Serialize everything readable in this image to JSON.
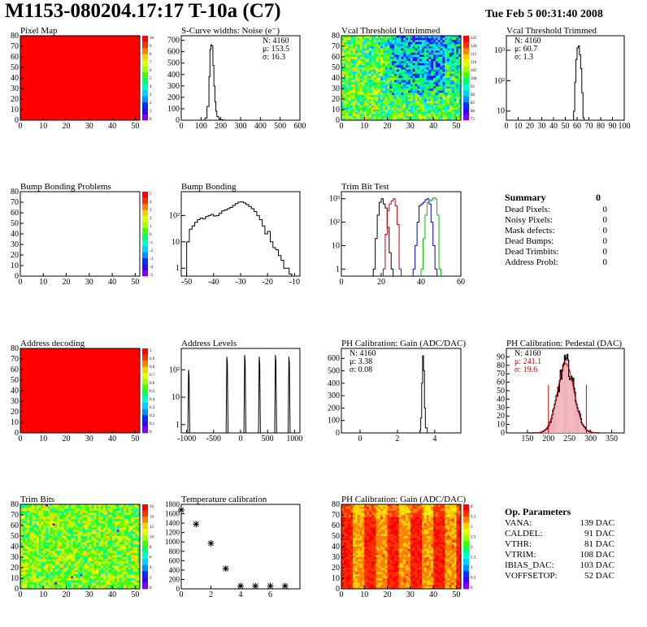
{
  "header": {
    "title": "M1153-080204.17:17 T-10a (C7)",
    "date": "Tue Feb  5 00:31:40 2008"
  },
  "summary": {
    "title": "Summary",
    "total": "0",
    "rows": [
      {
        "label": "Dead Pixels:",
        "value": "0"
      },
      {
        "label": "Noisy Pixels:",
        "value": "0"
      },
      {
        "label": "Mask defects:",
        "value": "0"
      },
      {
        "label": "Dead Bumps:",
        "value": "0"
      },
      {
        "label": "Dead Trimbits:",
        "value": "0"
      },
      {
        "label": "Address Probl:",
        "value": "0"
      }
    ]
  },
  "op_params": {
    "title": "Op. Parameters",
    "rows": [
      {
        "label": "VANA:",
        "value": "139 DAC"
      },
      {
        "label": "CALDEL:",
        "value": "91 DAC"
      },
      {
        "label": "VTHR:",
        "value": "81 DAC"
      },
      {
        "label": "VTRIM:",
        "value": "108 DAC"
      },
      {
        "label": "IBIAS_DAC:",
        "value": "103 DAC"
      },
      {
        "label": "VOFFSETOP:",
        "value": "52 DAC"
      }
    ]
  },
  "chart_data": [
    {
      "id": "pixel-map",
      "type": "heatmap",
      "title": "Pixel Map",
      "fill": "uniform-red",
      "xlim": [
        0,
        52
      ],
      "ylim": [
        0,
        80
      ],
      "xticks": [
        0,
        10,
        20,
        30,
        40,
        50
      ],
      "yticks": [
        0,
        10,
        20,
        30,
        40,
        50,
        60,
        70,
        80
      ],
      "palette_labels": [
        "10",
        "9",
        "8",
        "7",
        "6",
        "5",
        "4",
        "3",
        "2",
        "1",
        "0"
      ]
    },
    {
      "id": "scurve-noise",
      "type": "line",
      "title": "S-Curve widths: Noise (e⁻)",
      "xlim": [
        0,
        600
      ],
      "ylim": [
        0,
        740
      ],
      "xticks": [
        0,
        100,
        200,
        300,
        400,
        500,
        600
      ],
      "yticks": [
        0,
        100,
        200,
        300,
        400,
        500,
        600,
        700
      ],
      "stats": [
        "N: 4160",
        "μ: 153.5",
        "σ: 16.3"
      ],
      "x": [
        110,
        120,
        130,
        140,
        145,
        150,
        155,
        160,
        165,
        170,
        175,
        180,
        190,
        200,
        210,
        220
      ],
      "y": [
        0,
        20,
        120,
        380,
        620,
        660,
        650,
        480,
        300,
        160,
        80,
        30,
        10,
        4,
        2,
        0
      ]
    },
    {
      "id": "vcal-untrimmed",
      "type": "heatmap",
      "title": "Vcal Threshold Untrimmed",
      "fill": "noise-threshold",
      "xlim": [
        0,
        52
      ],
      "ylim": [
        0,
        80
      ],
      "xticks": [
        0,
        10,
        20,
        30,
        40,
        50
      ],
      "yticks": [
        0,
        10,
        20,
        30,
        40,
        50,
        60,
        70,
        80
      ],
      "palette_labels": [
        "125",
        "120",
        "115",
        "110",
        "105",
        "100",
        "95",
        "90",
        "85",
        "80",
        "75"
      ]
    },
    {
      "id": "vcal-trimmed",
      "type": "line",
      "title": "Vcal Threshold Trimmed",
      "yscale": "log",
      "xlim": [
        0,
        100
      ],
      "ylim": [
        5,
        3000
      ],
      "xticks": [
        0,
        10,
        20,
        30,
        40,
        50,
        60,
        70,
        80,
        90,
        100
      ],
      "ylabels": [
        {
          "v": 10,
          "t": "10"
        },
        {
          "v": 100,
          "t": "10²"
        },
        {
          "v": 1000,
          "t": "10³"
        }
      ],
      "stats": [
        "N: 4160",
        "μ: 60.7",
        "σ:  1.3"
      ],
      "x": [
        56,
        57,
        58,
        59,
        60,
        61,
        62,
        63,
        64,
        65,
        66
      ],
      "y": [
        3,
        10,
        90,
        500,
        1200,
        1400,
        700,
        250,
        40,
        6,
        1
      ]
    },
    {
      "id": "bump-bonding-problems",
      "type": "heatmap",
      "title": "Bump Bonding Problems",
      "fill": "empty",
      "xlim": [
        0,
        52
      ],
      "ylim": [
        0,
        80
      ],
      "xticks": [
        0,
        10,
        20,
        30,
        40,
        50
      ],
      "yticks": [
        0,
        10,
        20,
        30,
        40,
        50,
        60,
        70,
        80
      ],
      "palette_labels": [
        "5",
        "4",
        "3",
        "2",
        "1",
        "0",
        "-1",
        "-2",
        "-3",
        "-4",
        "-5"
      ]
    },
    {
      "id": "bump-bonding",
      "type": "line",
      "title": "Bump Bonding",
      "yscale": "log",
      "xlim": [
        -52,
        -8
      ],
      "ylim": [
        0.5,
        800
      ],
      "xticks": [
        -50,
        -40,
        -30,
        -20,
        -10
      ],
      "ylabels": [
        {
          "v": 1,
          "t": "1"
        },
        {
          "v": 10,
          "t": "10"
        },
        {
          "v": 100,
          "t": "10²"
        }
      ],
      "x": [
        -50,
        -49,
        -48,
        -47,
        -46,
        -45,
        -44,
        -43,
        -42,
        -41,
        -40,
        -39,
        -38,
        -37,
        -36,
        -35,
        -34,
        -33,
        -32,
        -31,
        -30,
        -29,
        -28,
        -27,
        -26,
        -25,
        -24,
        -23,
        -22,
        -21,
        -20,
        -19,
        -18,
        -17,
        -16,
        -15,
        -14,
        -13,
        -12
      ],
      "y": [
        10,
        30,
        40,
        55,
        70,
        80,
        75,
        90,
        100,
        110,
        95,
        100,
        120,
        150,
        160,
        180,
        200,
        240,
        280,
        320,
        330,
        300,
        260,
        220,
        180,
        140,
        100,
        70,
        40,
        20,
        25,
        10,
        6,
        5,
        3,
        2,
        1,
        1,
        0.6
      ]
    },
    {
      "id": "trim-bit-test",
      "type": "line",
      "title": "Trim Bit Test",
      "yscale": "log",
      "xlim": [
        0,
        60
      ],
      "ylim": [
        0.5,
        2000
      ],
      "xticks": [
        0,
        20,
        40,
        60
      ],
      "ylabels": [
        {
          "v": 1,
          "t": "1"
        },
        {
          "v": 10,
          "t": "10"
        },
        {
          "v": 100,
          "t": "10²"
        },
        {
          "v": 1000,
          "t": "10³"
        }
      ],
      "series": [
        {
          "color": "#000000",
          "x": [
            16,
            17,
            18,
            19,
            20,
            21,
            22,
            23,
            24,
            25
          ],
          "y": [
            1,
            20,
            200,
            700,
            1000,
            600,
            400,
            60,
            5,
            1
          ]
        },
        {
          "color": "#cc0000",
          "x": [
            21,
            22,
            23,
            24,
            25,
            26,
            27,
            28,
            29
          ],
          "y": [
            1,
            30,
            300,
            600,
            800,
            1000,
            500,
            80,
            1
          ]
        },
        {
          "color": "#0000cc",
          "x": [
            36,
            37,
            38,
            39,
            40,
            41,
            42,
            43,
            44,
            45,
            46,
            47
          ],
          "y": [
            1,
            10,
            100,
            500,
            600,
            700,
            900,
            1000,
            600,
            100,
            10,
            1
          ]
        },
        {
          "color": "#00bb00",
          "x": [
            40,
            41,
            42,
            43,
            44,
            45,
            46,
            47,
            48,
            49
          ],
          "y": [
            1,
            20,
            200,
            700,
            800,
            900,
            1100,
            1000,
            200,
            1
          ]
        }
      ]
    },
    {
      "id": "address-decoding",
      "type": "heatmap",
      "title": "Address decoding",
      "fill": "uniform-red",
      "xlim": [
        0,
        52
      ],
      "ylim": [
        0,
        80
      ],
      "xticks": [
        0,
        10,
        20,
        30,
        40,
        50
      ],
      "yticks": [
        0,
        10,
        20,
        30,
        40,
        50,
        60,
        70,
        80
      ],
      "palette_labels": [
        "1",
        "0.9",
        "0.8",
        "0.7",
        "0.6",
        "0.5",
        "0.4",
        "0.3",
        "0.2",
        "0.1",
        "0"
      ]
    },
    {
      "id": "address-levels",
      "type": "line",
      "title": "Address Levels",
      "yscale": "log",
      "xlim": [
        -1100,
        1100
      ],
      "ylim": [
        0.5,
        600
      ],
      "xticks": [
        -1000,
        -500,
        0,
        500,
        1000
      ],
      "ylabels": [
        {
          "v": 1,
          "t": "1"
        },
        {
          "v": 10,
          "t": "10"
        },
        {
          "v": 100,
          "t": "10²"
        }
      ],
      "peaks": [
        -960,
        -250,
        80,
        350,
        650,
        900
      ],
      "peak_heights": [
        100,
        300,
        350,
        300,
        350,
        300
      ]
    },
    {
      "id": "ph-gain",
      "type": "line",
      "title": "PH Calibration: Gain (ADC/DAC)",
      "xlim": [
        -1,
        5.4
      ],
      "ylim": [
        0,
        680
      ],
      "xticks": [
        0,
        2,
        4
      ],
      "yticks": [
        0,
        100,
        200,
        300,
        400,
        500,
        600
      ],
      "stats": [
        "N: 4160",
        "μ: 3.38",
        "σ: 0.08"
      ],
      "x": [
        3.1,
        3.2,
        3.25,
        3.3,
        3.35,
        3.4,
        3.45,
        3.5,
        3.6
      ],
      "y": [
        0,
        20,
        120,
        400,
        620,
        500,
        200,
        40,
        0
      ]
    },
    {
      "id": "ph-pedestal",
      "type": "line",
      "title": "PH Calibration: Pedestal (DAC)",
      "xlim": [
        100,
        380
      ],
      "ylim": [
        0,
        100
      ],
      "xticks": [
        150,
        200,
        250,
        300,
        350
      ],
      "yticks": [
        0,
        10,
        20,
        30,
        40,
        50,
        60,
        70,
        80,
        90
      ],
      "stats": [
        "N: 4160",
        "μ: 241.1",
        "σ: 19.6"
      ],
      "cut_lines": [
        200,
        290
      ]
    },
    {
      "id": "trim-bits",
      "type": "heatmap",
      "title": "Trim Bits",
      "fill": "noise-trim",
      "xlim": [
        0,
        52
      ],
      "ylim": [
        0,
        80
      ],
      "xticks": [
        0,
        10,
        20,
        30,
        40,
        50
      ],
      "yticks": [
        0,
        10,
        20,
        30,
        40,
        50,
        60,
        70,
        80
      ],
      "palette_labels": [
        "16",
        "14",
        "12",
        "10",
        "8",
        "6",
        "4",
        "2",
        "0"
      ]
    },
    {
      "id": "temperature-calibration",
      "type": "scatter",
      "title": "Temperature calibration",
      "xlim": [
        0,
        8
      ],
      "ylim": [
        0,
        1800
      ],
      "xticks": [
        0,
        2,
        4,
        6
      ],
      "yticks": [
        0,
        200,
        400,
        600,
        800,
        1000,
        1200,
        1400,
        1600,
        1800
      ],
      "x": [
        0,
        1,
        2,
        3,
        4,
        5,
        6,
        7
      ],
      "y": [
        1680,
        1380,
        970,
        430,
        60,
        60,
        60,
        60
      ]
    },
    {
      "id": "ph-gain-map",
      "type": "heatmap",
      "title": "PH Calibration: Gain (ADC/DAC)",
      "fill": "column-stripes",
      "xlim": [
        0,
        52
      ],
      "ylim": [
        0,
        80
      ],
      "xticks": [
        0,
        10,
        20,
        30,
        40,
        50
      ],
      "yticks": [
        0,
        10,
        20,
        30,
        40,
        50,
        60,
        70,
        80
      ],
      "palette_labels": [
        "4",
        "3.5",
        "3",
        "2.5",
        "2",
        "1.5",
        "1",
        "0.5",
        "0"
      ]
    }
  ]
}
